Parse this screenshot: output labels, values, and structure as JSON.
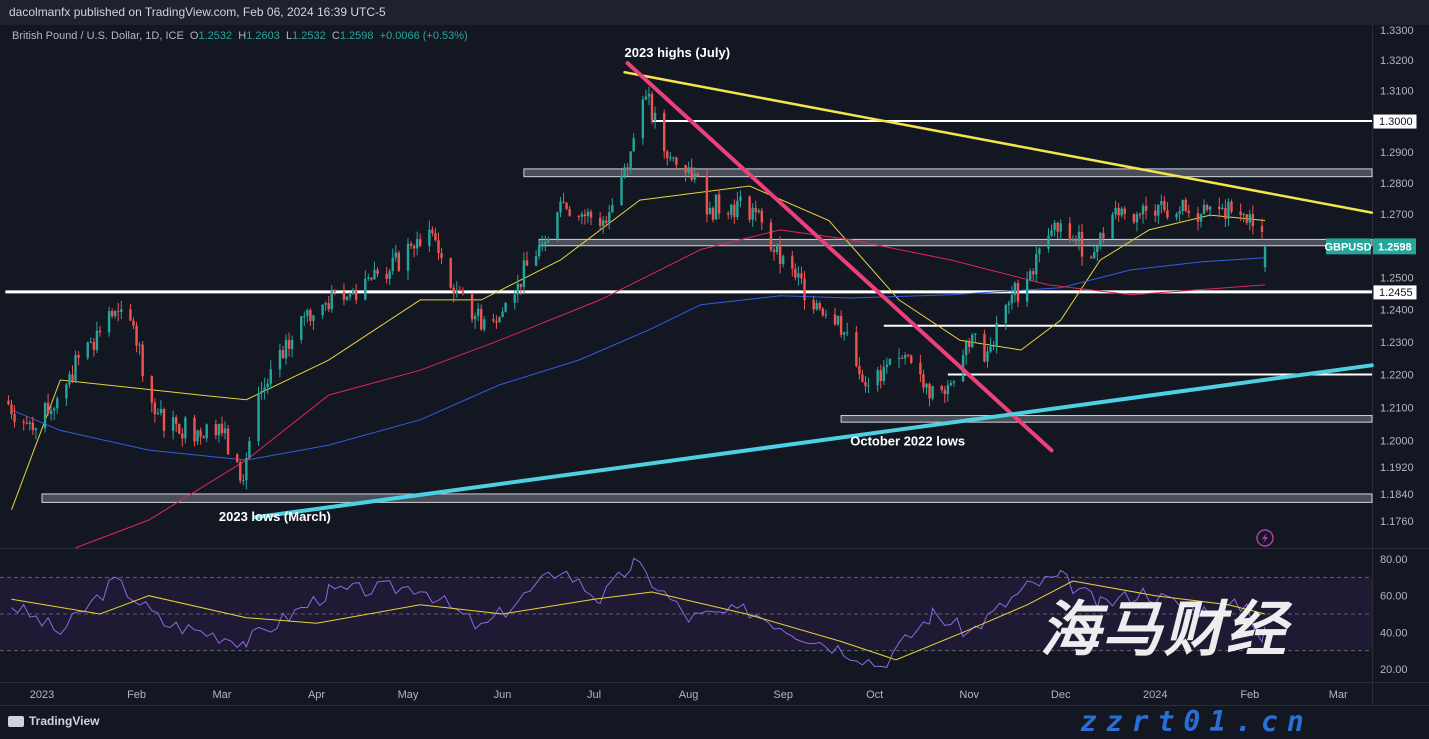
{
  "header": {
    "published": "dacolmanfx published on TradingView.com, Feb 06, 2024 16:39 UTC-5"
  },
  "legend": {
    "symbol": "British Pound / U.S. Dollar, 1D, ICE",
    "o_label": "O",
    "o": "1.2532",
    "h_label": "H",
    "h": "1.2603",
    "l_label": "L",
    "l": "1.2532",
    "c_label": "C",
    "c": "1.2598",
    "change": "+0.0066 (+0.53%)"
  },
  "footer": {
    "logo_text": "TradingView"
  },
  "watermark": {
    "cn": "海马财经",
    "url": "zzrt01.cn"
  },
  "colors": {
    "up": "#26a69a",
    "down": "#ef5350",
    "ma_yellow": "#e7d33a",
    "ma_blue": "#2f5fe0",
    "ma_red": "#e0245e",
    "rsi": "#8a6ae0",
    "rsi_signal": "#e7d33a",
    "trend_yellow": "#f5e44d",
    "trend_pink": "#ec407a",
    "trend_cyan": "#4dd0e1"
  },
  "chart_data": {
    "type": "candlestick",
    "symbol": "GBPUSD",
    "interval": "1D",
    "price_axis": {
      "scale": "log",
      "range": [
        1.173,
        1.333
      ],
      "ticks": [
        "1.3300",
        "1.3200",
        "1.3100",
        "1.2900",
        "1.2800",
        "1.2700",
        "1.2500",
        "1.2400",
        "1.2300",
        "1.2200",
        "1.2100",
        "1.2000",
        "1.1920",
        "1.1840",
        "1.1760"
      ]
    },
    "time_axis": {
      "ticks": [
        {
          "label": "2023",
          "date": "2023-01-01"
        },
        {
          "label": "Feb",
          "date": "2023-02-01"
        },
        {
          "label": "Mar",
          "date": "2023-03-01"
        },
        {
          "label": "Apr",
          "date": "2023-04-01"
        },
        {
          "label": "May",
          "date": "2023-05-01"
        },
        {
          "label": "Jun",
          "date": "2023-06-01"
        },
        {
          "label": "Jul",
          "date": "2023-07-01"
        },
        {
          "label": "Aug",
          "date": "2023-08-01"
        },
        {
          "label": "Sep",
          "date": "2023-09-01"
        },
        {
          "label": "Oct",
          "date": "2023-10-01"
        },
        {
          "label": "Nov",
          "date": "2023-11-01"
        },
        {
          "label": "Dec",
          "date": "2023-12-01"
        },
        {
          "label": "2024",
          "date": "2024-01-01"
        },
        {
          "label": "Feb",
          "date": "2024-02-01"
        },
        {
          "label": "Mar",
          "date": "2024-03-01"
        }
      ]
    },
    "weekly_closes": [
      [
        "2022-12-20",
        1.212
      ],
      [
        "2022-12-27",
        1.205
      ],
      [
        "2023-01-03",
        1.208
      ],
      [
        "2023-01-10",
        1.22
      ],
      [
        "2023-01-17",
        1.23
      ],
      [
        "2023-01-24",
        1.238
      ],
      [
        "2023-01-31",
        1.235
      ],
      [
        "2023-02-07",
        1.208
      ],
      [
        "2023-02-14",
        1.205
      ],
      [
        "2023-02-21",
        1.203
      ],
      [
        "2023-02-28",
        1.205
      ],
      [
        "2023-03-07",
        1.188
      ],
      [
        "2023-03-14",
        1.215
      ],
      [
        "2023-03-21",
        1.225
      ],
      [
        "2023-03-28",
        1.238
      ],
      [
        "2023-04-04",
        1.242
      ],
      [
        "2023-04-11",
        1.244
      ],
      [
        "2023-04-18",
        1.25
      ],
      [
        "2023-04-25",
        1.252
      ],
      [
        "2023-05-02",
        1.26
      ],
      [
        "2023-05-09",
        1.264
      ],
      [
        "2023-05-16",
        1.245
      ],
      [
        "2023-05-23",
        1.238
      ],
      [
        "2023-05-30",
        1.236
      ],
      [
        "2023-06-06",
        1.248
      ],
      [
        "2023-06-13",
        1.26
      ],
      [
        "2023-06-20",
        1.274
      ],
      [
        "2023-06-27",
        1.27
      ],
      [
        "2023-07-04",
        1.268
      ],
      [
        "2023-07-11",
        1.285
      ],
      [
        "2023-07-18",
        1.308
      ],
      [
        "2023-07-25",
        1.288
      ],
      [
        "2023-08-01",
        1.285
      ],
      [
        "2023-08-08",
        1.272
      ],
      [
        "2023-08-15",
        1.273
      ],
      [
        "2023-08-22",
        1.272
      ],
      [
        "2023-08-29",
        1.258
      ],
      [
        "2023-09-05",
        1.25
      ],
      [
        "2023-09-12",
        1.242
      ],
      [
        "2023-09-19",
        1.238
      ],
      [
        "2023-09-26",
        1.22
      ],
      [
        "2023-10-03",
        1.218
      ],
      [
        "2023-10-10",
        1.225
      ],
      [
        "2023-10-17",
        1.216
      ],
      [
        "2023-10-24",
        1.214
      ],
      [
        "2023-10-31",
        1.23
      ],
      [
        "2023-11-07",
        1.227
      ],
      [
        "2023-11-14",
        1.242
      ],
      [
        "2023-11-21",
        1.252
      ],
      [
        "2023-11-28",
        1.265
      ],
      [
        "2023-12-05",
        1.262
      ],
      [
        "2023-12-12",
        1.258
      ],
      [
        "2023-12-19",
        1.272
      ],
      [
        "2023-12-26",
        1.27
      ],
      [
        "2024-01-02",
        1.273
      ],
      [
        "2024-01-09",
        1.271
      ],
      [
        "2024-01-16",
        1.27
      ],
      [
        "2024-01-23",
        1.272
      ],
      [
        "2024-01-30",
        1.27
      ],
      [
        "2024-02-06",
        1.2598
      ]
    ],
    "moving_averages": [
      {
        "color": "ma_yellow",
        "points": [
          [
            "2022-12-22",
            1.1793
          ],
          [
            "2023-01-07",
            1.2183
          ],
          [
            "2023-02-22",
            1.2137
          ],
          [
            "2023-03-09",
            1.2123
          ],
          [
            "2023-04-05",
            1.2244
          ],
          [
            "2023-05-05",
            1.243
          ],
          [
            "2023-05-25",
            1.243
          ],
          [
            "2023-06-20",
            1.2555
          ],
          [
            "2023-07-16",
            1.2745
          ],
          [
            "2023-08-21",
            1.279
          ],
          [
            "2023-09-16",
            1.268
          ],
          [
            "2023-10-09",
            1.243
          ],
          [
            "2023-10-29",
            1.2305
          ],
          [
            "2023-11-18",
            1.2275
          ],
          [
            "2023-12-01",
            1.2367
          ],
          [
            "2023-12-14",
            1.2555
          ],
          [
            "2023-12-30",
            1.265
          ],
          [
            "2024-01-19",
            1.2697
          ],
          [
            "2024-02-06",
            1.268
          ]
        ]
      },
      {
        "color": "ma_blue",
        "points": [
          [
            "2022-12-22",
            1.2092
          ],
          [
            "2023-01-07",
            1.203
          ],
          [
            "2023-02-05",
            1.1971
          ],
          [
            "2023-03-09",
            1.1941
          ],
          [
            "2023-04-05",
            1.1986
          ],
          [
            "2023-05-05",
            1.2062
          ],
          [
            "2023-05-31",
            1.2168
          ],
          [
            "2023-06-26",
            1.2244
          ],
          [
            "2023-07-19",
            1.2337
          ],
          [
            "2023-08-05",
            1.2415
          ],
          [
            "2023-08-31",
            1.2443
          ],
          [
            "2023-09-23",
            1.2436
          ],
          [
            "2023-10-26",
            1.2446
          ],
          [
            "2023-12-01",
            1.2468
          ],
          [
            "2023-12-24",
            1.2524
          ],
          [
            "2024-01-16",
            1.2549
          ],
          [
            "2024-02-06",
            1.2562
          ]
        ]
      },
      {
        "color": "ma_red",
        "points": [
          [
            "2023-01-12",
            1.1681
          ],
          [
            "2023-02-05",
            1.1763
          ],
          [
            "2023-03-09",
            1.1941
          ],
          [
            "2023-04-05",
            1.2137
          ],
          [
            "2023-05-05",
            1.2213
          ],
          [
            "2023-05-31",
            1.2305
          ],
          [
            "2023-07-03",
            1.243
          ],
          [
            "2023-08-05",
            1.2588
          ],
          [
            "2023-08-31",
            1.265
          ],
          [
            "2023-09-23",
            1.2619
          ],
          [
            "2023-10-26",
            1.2555
          ],
          [
            "2023-11-27",
            1.2477
          ],
          [
            "2023-12-24",
            1.2446
          ],
          [
            "2024-02-06",
            1.2477
          ]
        ]
      }
    ],
    "price_labels": [
      {
        "text": "1.3000",
        "price": 1.3,
        "style": "white"
      },
      {
        "text": "1.2455",
        "price": 1.2455,
        "style": "white"
      },
      {
        "symbol": "GBPUSD",
        "text": "1.2598",
        "price": 1.2598,
        "style": "last"
      }
    ],
    "horizontal_levels": [
      {
        "price": 1.3,
        "from": "2023-07-20",
        "kind": "line"
      },
      {
        "price": 1.2455,
        "from": "2022-12-20",
        "kind": "line-thick"
      },
      {
        "price": 1.235,
        "from": "2023-10-04",
        "kind": "line"
      },
      {
        "price": 1.22,
        "from": "2023-10-25",
        "kind": "line"
      },
      {
        "price": 1.261,
        "from": "2023-06-13",
        "kind": "zone",
        "low": 1.26,
        "high": 1.262
      },
      {
        "price": 1.283,
        "from": "2023-06-08",
        "kind": "zone",
        "low": 1.282,
        "high": 1.2845
      },
      {
        "price": 1.2065,
        "from": "2023-09-20",
        "kind": "zone",
        "low": 1.2055,
        "high": 1.2075
      },
      {
        "price": 1.183,
        "from": "2023-01-01",
        "kind": "zone",
        "low": 1.1815,
        "high": 1.184
      }
    ],
    "trendlines": [
      {
        "color": "trend_yellow",
        "from": [
          "2023-07-11",
          1.316
        ],
        "to": [
          "2024-03-12",
          1.2705
        ]
      },
      {
        "color": "trend_pink",
        "from": [
          "2023-07-12",
          1.319
        ],
        "to": [
          "2023-11-28",
          1.197
        ]
      },
      {
        "color": "trend_cyan",
        "from": [
          "2023-03-12",
          1.1771
        ],
        "to": [
          "2024-03-12",
          1.2228
        ]
      }
    ],
    "annotations": [
      {
        "text": "2023 highs (July)",
        "date": "2023-07-11",
        "price": 1.321
      },
      {
        "text": "October 2022 lows",
        "date": "2023-09-23",
        "price": 1.1985
      },
      {
        "text": "2023 lows (March)",
        "date": "2023-02-28",
        "price": 1.176
      }
    ],
    "rsi": {
      "axis": {
        "ticks": [
          "80.00",
          "60.00",
          "40.00",
          "20.00"
        ],
        "band": [
          30,
          70
        ]
      },
      "values": [
        [
          "2022-12-22",
          55
        ],
        [
          "2023-01-07",
          40
        ],
        [
          "2023-01-25",
          68
        ],
        [
          "2023-02-10",
          45
        ],
        [
          "2023-03-09",
          35
        ],
        [
          "2023-04-05",
          62
        ],
        [
          "2023-05-05",
          65
        ],
        [
          "2023-05-25",
          42
        ],
        [
          "2023-06-20",
          75
        ],
        [
          "2023-07-03",
          58
        ],
        [
          "2023-07-14",
          78
        ],
        [
          "2023-08-01",
          48
        ],
        [
          "2023-08-21",
          52
        ],
        [
          "2023-09-05",
          40
        ],
        [
          "2023-09-25",
          28
        ],
        [
          "2023-10-03",
          22
        ],
        [
          "2023-10-20",
          50
        ],
        [
          "2023-11-01",
          40
        ],
        [
          "2023-11-20",
          65
        ],
        [
          "2023-12-01",
          70
        ],
        [
          "2023-12-14",
          55
        ],
        [
          "2023-12-28",
          62
        ],
        [
          "2024-01-15",
          52
        ],
        [
          "2024-01-31",
          55
        ],
        [
          "2024-02-05",
          36
        ],
        [
          "2024-02-06",
          43
        ]
      ],
      "signal": [
        [
          "2022-12-22",
          58
        ],
        [
          "2023-01-20",
          50
        ],
        [
          "2023-02-05",
          60
        ],
        [
          "2023-03-09",
          48
        ],
        [
          "2023-04-01",
          45
        ],
        [
          "2023-05-05",
          55
        ],
        [
          "2023-06-01",
          50
        ],
        [
          "2023-07-01",
          58
        ],
        [
          "2023-07-20",
          62
        ],
        [
          "2023-08-20",
          50
        ],
        [
          "2023-09-20",
          35
        ],
        [
          "2023-10-08",
          25
        ],
        [
          "2023-10-30",
          40
        ],
        [
          "2023-11-20",
          55
        ],
        [
          "2023-12-05",
          68
        ],
        [
          "2024-01-01",
          60
        ],
        [
          "2024-01-25",
          55
        ],
        [
          "2024-02-06",
          50
        ]
      ]
    }
  }
}
